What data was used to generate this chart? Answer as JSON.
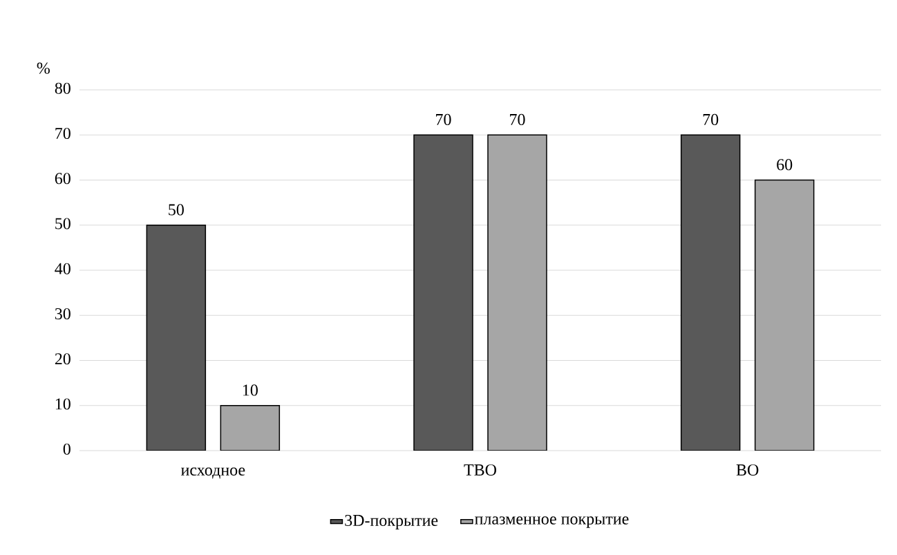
{
  "chart_data": {
    "type": "bar",
    "ylabel": "%",
    "categories": [
      "исходное",
      "ТВО",
      "ВО"
    ],
    "series": [
      {
        "name": "3D-покрытие",
        "color": "#595959",
        "values": [
          50,
          70,
          70
        ]
      },
      {
        "name": "плазменное покрытие",
        "color": "#a6a6a6",
        "values": [
          10,
          70,
          60
        ]
      }
    ],
    "ylim": [
      0,
      80
    ],
    "yticks": [
      0,
      10,
      20,
      30,
      40,
      50,
      60,
      70,
      80
    ],
    "grid": "y",
    "legend": "bottom",
    "data_labels": true
  }
}
